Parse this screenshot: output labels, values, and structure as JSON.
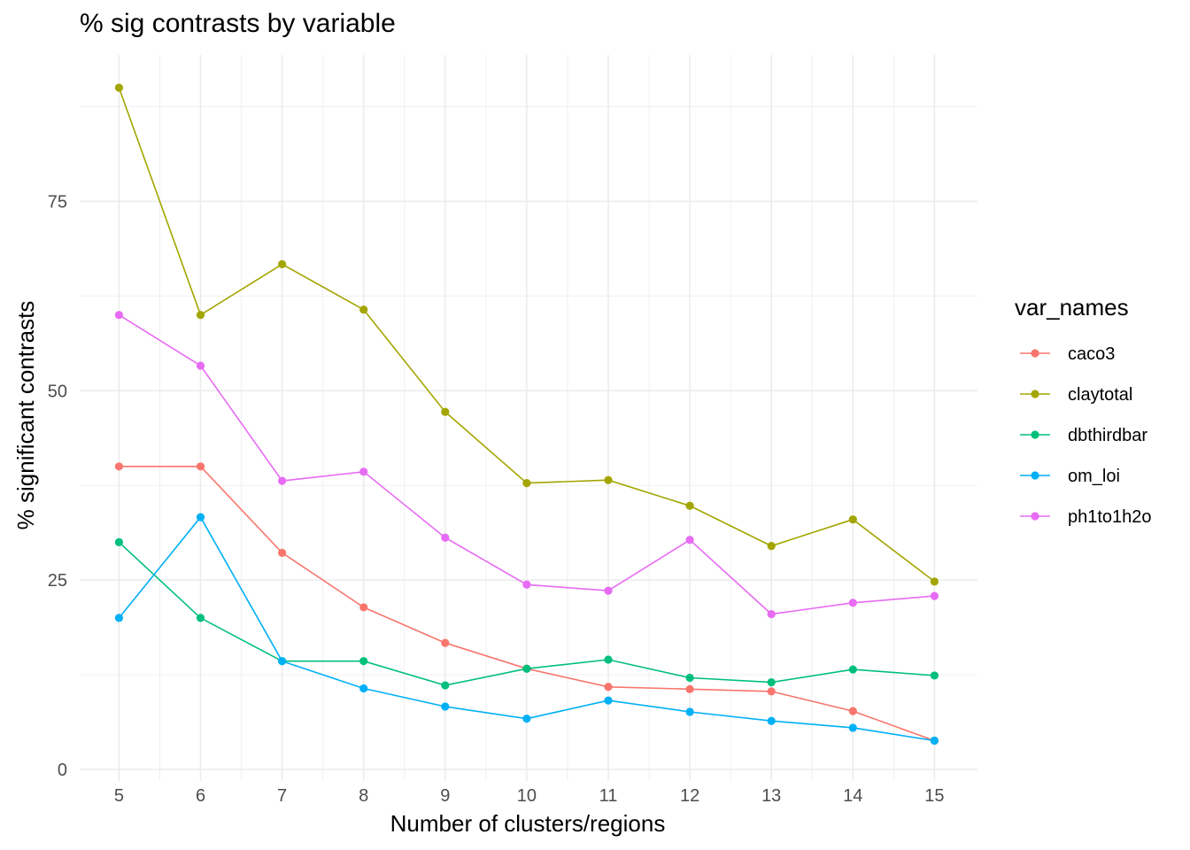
{
  "chart_data": {
    "type": "line",
    "title": "% sig contrasts by variable",
    "xlabel": "Number of clusters/regions",
    "ylabel": "% significant contrasts",
    "x": [
      5,
      6,
      7,
      8,
      9,
      10,
      11,
      12,
      13,
      14,
      15
    ],
    "xlim": [
      4.5,
      15.5
    ],
    "ylim": [
      0,
      90
    ],
    "y_ticks": [
      0,
      25,
      50,
      75
    ],
    "grid": true,
    "legend_title": "var_names",
    "legend_position": "right",
    "series": [
      {
        "name": "caco3",
        "color": "#F8766D",
        "values": [
          40.0,
          40.0,
          28.6,
          21.4,
          16.7,
          13.3,
          10.9,
          10.6,
          10.3,
          7.7,
          3.8
        ]
      },
      {
        "name": "claytotal",
        "color": "#A3A500",
        "values": [
          90.0,
          60.0,
          66.7,
          60.7,
          47.2,
          37.8,
          38.2,
          34.8,
          29.5,
          33.0,
          24.8
        ]
      },
      {
        "name": "dbthirdbar",
        "color": "#00BF7D",
        "values": [
          30.0,
          20.0,
          14.3,
          14.3,
          11.1,
          13.3,
          14.5,
          12.1,
          11.5,
          13.2,
          12.4
        ]
      },
      {
        "name": "om_loi",
        "color": "#00B0F6",
        "values": [
          20.0,
          33.3,
          14.3,
          10.7,
          8.3,
          6.7,
          9.1,
          7.6,
          6.4,
          5.5,
          3.8
        ]
      },
      {
        "name": "ph1to1h2o",
        "color": "#E76BF3",
        "values": [
          60.0,
          53.3,
          38.1,
          39.3,
          30.6,
          24.4,
          23.6,
          30.3,
          20.5,
          22.0,
          22.9
        ]
      }
    ]
  }
}
